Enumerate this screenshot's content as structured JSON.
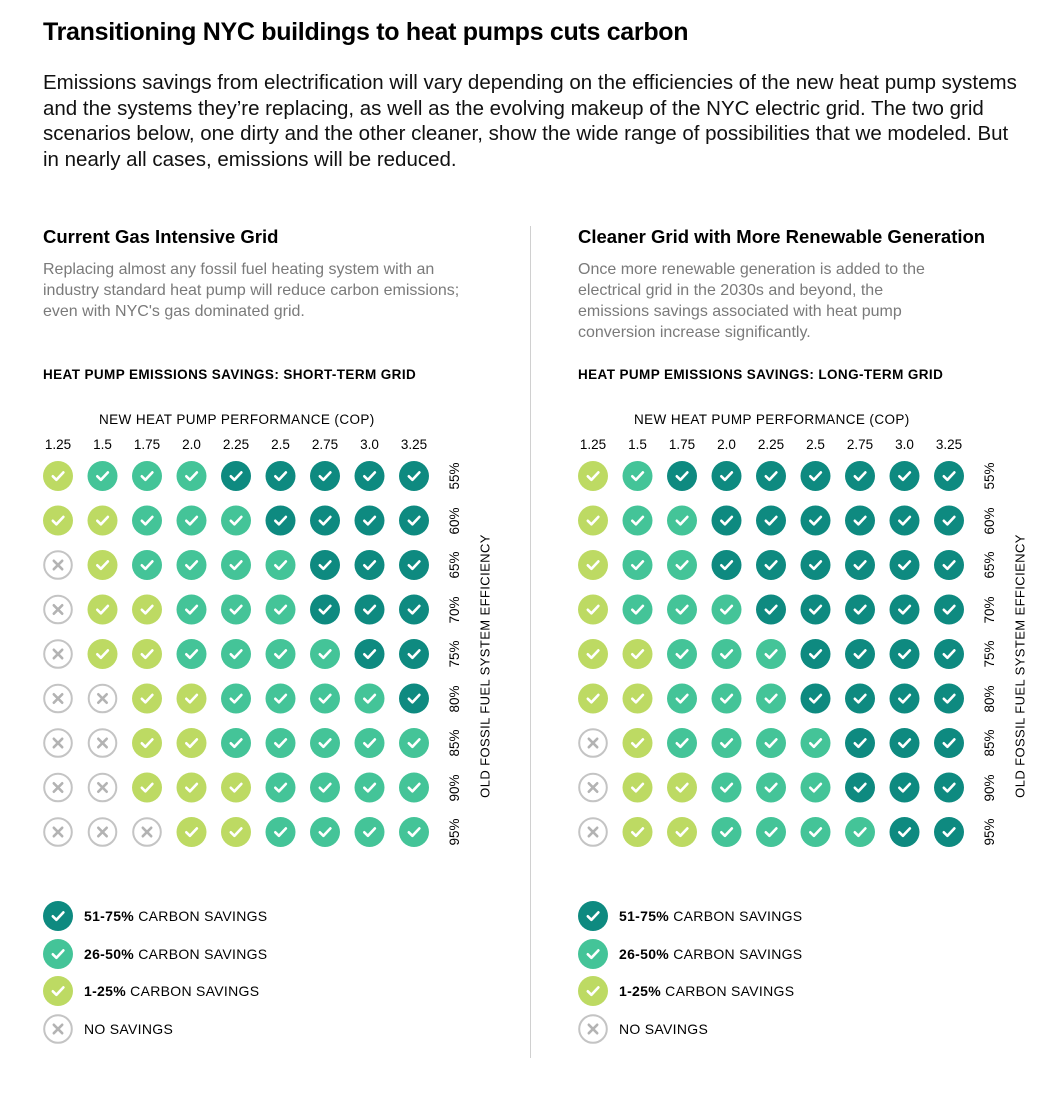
{
  "title": "Transitioning NYC buildings to heat pumps cuts carbon",
  "intro": "Emissions savings from electrification will vary depending on the efficiencies of the new heat pump systems and the systems they’re replacing, as well as the evolving makeup of the NYC electric grid. The two grid scenarios below, one dirty and the other cleaner, show the wide range of possibilities that we modeled. But in nearly all cases, emissions will be reduced.",
  "colors": {
    "level3": "#0e8a80",
    "level2": "#44c498",
    "level1": "#bdda63",
    "none_stroke": "#c4c4c4",
    "none_fill": "#ffffff",
    "check": "#ffffff",
    "x_mark": "#b3b3b3"
  },
  "panels": [
    {
      "title": "Current Gas Intensive Grid",
      "description": "Replacing almost any fossil fuel heating system with an industry standard heat pump will reduce carbon emissions; even with NYC's gas dominated grid.",
      "subtitle": "HEAT PUMP EMISSIONS SAVINGS: SHORT-TERM GRID"
    },
    {
      "title": "Cleaner Grid with More Renewable Generation",
      "description": "Once more renewable generation is added to the electrical grid in the 2030s and beyond, the emissions savings associated with heat pump conversion increase significantly.",
      "subtitle": "HEAT PUMP EMISSIONS SAVINGS: LONG-TERM GRID"
    }
  ],
  "legend": [
    {
      "level": 3,
      "bold": "51-75%",
      "text": " CARBON SAVINGS"
    },
    {
      "level": 2,
      "bold": "26-50%",
      "text": " CARBON SAVINGS"
    },
    {
      "level": 1,
      "bold": "1-25%",
      "text": " CARBON SAVINGS"
    },
    {
      "level": 0,
      "bold": "",
      "text": "NO SAVINGS"
    }
  ],
  "chart_data": [
    {
      "type": "heatmap",
      "title": "HEAT PUMP EMISSIONS SAVINGS: SHORT-TERM GRID",
      "xlabel": "NEW HEAT PUMP PERFORMANCE (COP)",
      "ylabel": "OLD FOSSIL FUEL SYSTEM EFFICIENCY",
      "x": [
        "1.25",
        "1.5",
        "1.75",
        "2.0",
        "2.25",
        "2.5",
        "2.75",
        "3.0",
        "3.25"
      ],
      "y": [
        "55%",
        "60%",
        "65%",
        "70%",
        "75%",
        "80%",
        "85%",
        "90%",
        "95%"
      ],
      "value_legend": {
        "0": "NO SAVINGS",
        "1": "1-25% CARBON SAVINGS",
        "2": "26-50% CARBON SAVINGS",
        "3": "51-75% CARBON SAVINGS"
      },
      "values": [
        [
          1,
          2,
          2,
          2,
          3,
          3,
          3,
          3,
          3
        ],
        [
          1,
          1,
          2,
          2,
          2,
          3,
          3,
          3,
          3
        ],
        [
          0,
          1,
          2,
          2,
          2,
          2,
          3,
          3,
          3
        ],
        [
          0,
          1,
          1,
          2,
          2,
          2,
          3,
          3,
          3
        ],
        [
          0,
          1,
          1,
          2,
          2,
          2,
          2,
          3,
          3
        ],
        [
          0,
          0,
          1,
          1,
          2,
          2,
          2,
          2,
          3
        ],
        [
          0,
          0,
          1,
          1,
          2,
          2,
          2,
          2,
          2
        ],
        [
          0,
          0,
          1,
          1,
          1,
          2,
          2,
          2,
          2
        ],
        [
          0,
          0,
          0,
          1,
          1,
          2,
          2,
          2,
          2
        ]
      ]
    },
    {
      "type": "heatmap",
      "title": "HEAT PUMP EMISSIONS SAVINGS: LONG-TERM GRID",
      "xlabel": "NEW HEAT PUMP PERFORMANCE (COP)",
      "ylabel": "OLD FOSSIL FUEL SYSTEM EFFICIENCY",
      "x": [
        "1.25",
        "1.5",
        "1.75",
        "2.0",
        "2.25",
        "2.5",
        "2.75",
        "3.0",
        "3.25"
      ],
      "y": [
        "55%",
        "60%",
        "65%",
        "70%",
        "75%",
        "80%",
        "85%",
        "90%",
        "95%"
      ],
      "value_legend": {
        "0": "NO SAVINGS",
        "1": "1-25% CARBON SAVINGS",
        "2": "26-50% CARBON SAVINGS",
        "3": "51-75% CARBON SAVINGS"
      },
      "values": [
        [
          1,
          2,
          3,
          3,
          3,
          3,
          3,
          3,
          3
        ],
        [
          1,
          2,
          2,
          3,
          3,
          3,
          3,
          3,
          3
        ],
        [
          1,
          2,
          2,
          3,
          3,
          3,
          3,
          3,
          3
        ],
        [
          1,
          2,
          2,
          2,
          3,
          3,
          3,
          3,
          3
        ],
        [
          1,
          1,
          2,
          2,
          2,
          3,
          3,
          3,
          3
        ],
        [
          1,
          1,
          2,
          2,
          2,
          3,
          3,
          3,
          3
        ],
        [
          0,
          1,
          2,
          2,
          2,
          2,
          3,
          3,
          3
        ],
        [
          0,
          1,
          1,
          2,
          2,
          2,
          3,
          3,
          3
        ],
        [
          0,
          1,
          1,
          2,
          2,
          2,
          2,
          3,
          3
        ]
      ]
    }
  ]
}
